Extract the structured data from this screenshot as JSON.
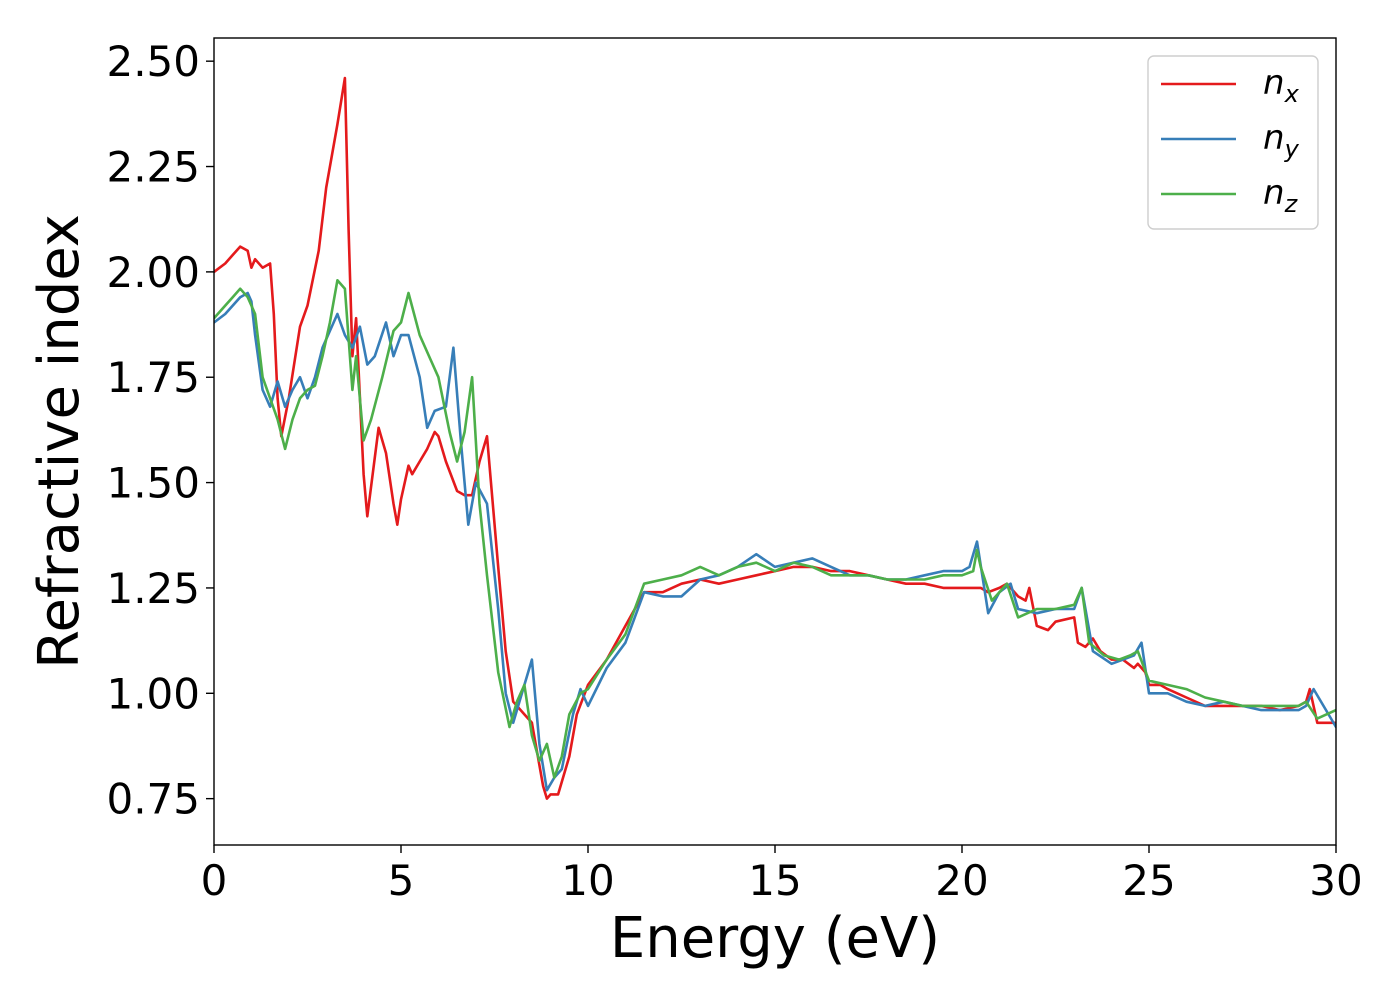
{
  "chart_data": {
    "type": "line",
    "xlabel": "Energy (eV)",
    "ylabel": "Refractive index",
    "xlim": [
      0,
      30
    ],
    "ylim": [
      0.64,
      2.555
    ],
    "xticks": [
      0,
      5,
      10,
      15,
      20,
      25,
      30
    ],
    "xtick_labels": [
      "0",
      "5",
      "10",
      "15",
      "20",
      "25",
      "30"
    ],
    "yticks": [
      0.75,
      1.0,
      1.25,
      1.5,
      1.75,
      2.0,
      2.25,
      2.5
    ],
    "ytick_labels": [
      "0.75",
      "1.00",
      "1.25",
      "1.50",
      "1.75",
      "2.00",
      "2.25",
      "2.50"
    ],
    "grid": false,
    "legend_position": "top-right",
    "series": [
      {
        "name": "n_x",
        "label_main": "n",
        "label_sub": "x",
        "color": "#e41a1c",
        "x": [
          0,
          0.3,
          0.5,
          0.7,
          0.9,
          1.0,
          1.1,
          1.3,
          1.5,
          1.6,
          1.7,
          1.8,
          2.0,
          2.3,
          2.5,
          2.8,
          3.0,
          3.3,
          3.5,
          3.6,
          3.7,
          3.8,
          4.0,
          4.1,
          4.4,
          4.6,
          4.8,
          4.9,
          5.0,
          5.2,
          5.3,
          5.5,
          5.7,
          5.9,
          6.0,
          6.2,
          6.5,
          6.7,
          6.9,
          7.1,
          7.3,
          7.6,
          7.8,
          8.0,
          8.3,
          8.5,
          8.8,
          8.9,
          9.0,
          9.2,
          9.5,
          9.7,
          10.0,
          10.5,
          11.0,
          11.5,
          12.0,
          12.5,
          13.0,
          13.5,
          14.0,
          14.5,
          15.0,
          15.5,
          16.0,
          16.5,
          17.0,
          17.5,
          18.0,
          18.5,
          19.0,
          19.5,
          20.0,
          20.5,
          20.7,
          21.0,
          21.2,
          21.5,
          21.7,
          21.8,
          22.0,
          22.3,
          22.5,
          23.0,
          23.1,
          23.3,
          23.5,
          23.7,
          24.0,
          24.3,
          24.6,
          24.7,
          24.9,
          25.0,
          25.3,
          25.5,
          26.0,
          26.5,
          27.0,
          27.5,
          28.0,
          28.5,
          29.0,
          29.2,
          29.3,
          29.5,
          30.0
        ],
        "y": [
          2.0,
          2.02,
          2.04,
          2.06,
          2.05,
          2.01,
          2.03,
          2.01,
          2.02,
          1.9,
          1.7,
          1.61,
          1.7,
          1.87,
          1.92,
          2.05,
          2.2,
          2.35,
          2.46,
          2.1,
          1.8,
          1.89,
          1.52,
          1.42,
          1.63,
          1.57,
          1.45,
          1.4,
          1.46,
          1.54,
          1.52,
          1.55,
          1.58,
          1.62,
          1.61,
          1.55,
          1.48,
          1.47,
          1.47,
          1.55,
          1.61,
          1.3,
          1.1,
          0.98,
          0.95,
          0.93,
          0.78,
          0.75,
          0.76,
          0.76,
          0.85,
          0.95,
          1.02,
          1.08,
          1.16,
          1.24,
          1.24,
          1.26,
          1.27,
          1.26,
          1.27,
          1.28,
          1.29,
          1.3,
          1.3,
          1.29,
          1.29,
          1.28,
          1.27,
          1.26,
          1.26,
          1.25,
          1.25,
          1.25,
          1.24,
          1.25,
          1.26,
          1.23,
          1.22,
          1.25,
          1.16,
          1.15,
          1.17,
          1.18,
          1.12,
          1.11,
          1.13,
          1.1,
          1.08,
          1.08,
          1.06,
          1.07,
          1.05,
          1.02,
          1.02,
          1.01,
          0.99,
          0.97,
          0.97,
          0.97,
          0.97,
          0.96,
          0.97,
          0.98,
          1.01,
          0.93,
          0.93
        ]
      },
      {
        "name": "n_y",
        "label_main": "n",
        "label_sub": "y",
        "color": "#377eb8",
        "x": [
          0,
          0.3,
          0.5,
          0.7,
          0.9,
          1.0,
          1.1,
          1.3,
          1.5,
          1.7,
          1.9,
          2.1,
          2.3,
          2.5,
          2.7,
          2.9,
          3.1,
          3.3,
          3.5,
          3.7,
          3.9,
          4.1,
          4.3,
          4.6,
          4.8,
          5.0,
          5.2,
          5.5,
          5.7,
          5.9,
          6.2,
          6.4,
          6.6,
          6.8,
          7.0,
          7.3,
          7.6,
          7.8,
          8.0,
          8.3,
          8.5,
          8.7,
          8.9,
          9.1,
          9.3,
          9.6,
          9.8,
          10.0,
          10.5,
          11.0,
          11.5,
          12.0,
          12.5,
          13.0,
          13.5,
          14.0,
          14.5,
          15.0,
          15.5,
          16.0,
          16.5,
          17.0,
          17.5,
          18.0,
          18.5,
          19.0,
          19.5,
          20.0,
          20.2,
          20.4,
          20.7,
          21.0,
          21.3,
          21.5,
          22.0,
          22.5,
          23.0,
          23.2,
          23.5,
          24.0,
          24.3,
          24.6,
          24.8,
          25.0,
          25.5,
          26.0,
          26.5,
          27.0,
          27.5,
          28.0,
          28.5,
          29.0,
          29.2,
          29.4,
          30.0
        ],
        "y": [
          1.88,
          1.9,
          1.92,
          1.94,
          1.95,
          1.93,
          1.85,
          1.72,
          1.68,
          1.74,
          1.68,
          1.72,
          1.75,
          1.7,
          1.75,
          1.82,
          1.86,
          1.9,
          1.85,
          1.82,
          1.87,
          1.78,
          1.8,
          1.88,
          1.8,
          1.85,
          1.85,
          1.75,
          1.63,
          1.67,
          1.68,
          1.82,
          1.6,
          1.4,
          1.5,
          1.45,
          1.2,
          1.0,
          0.93,
          1.02,
          1.08,
          0.88,
          0.77,
          0.8,
          0.82,
          0.95,
          1.01,
          0.97,
          1.06,
          1.12,
          1.24,
          1.23,
          1.23,
          1.27,
          1.28,
          1.3,
          1.33,
          1.3,
          1.31,
          1.32,
          1.3,
          1.28,
          1.28,
          1.27,
          1.27,
          1.28,
          1.29,
          1.29,
          1.3,
          1.36,
          1.19,
          1.24,
          1.26,
          1.2,
          1.19,
          1.2,
          1.2,
          1.25,
          1.1,
          1.07,
          1.08,
          1.09,
          1.12,
          1.0,
          1.0,
          0.98,
          0.97,
          0.98,
          0.97,
          0.96,
          0.96,
          0.96,
          0.97,
          1.01,
          0.92
        ]
      },
      {
        "name": "n_z",
        "label_main": "n",
        "label_sub": "z",
        "color": "#4daf4a",
        "x": [
          0,
          0.3,
          0.5,
          0.7,
          0.9,
          1.1,
          1.3,
          1.5,
          1.7,
          1.9,
          2.1,
          2.3,
          2.5,
          2.7,
          2.9,
          3.1,
          3.3,
          3.5,
          3.7,
          3.8,
          4.0,
          4.2,
          4.5,
          4.8,
          5.0,
          5.2,
          5.5,
          5.8,
          6.0,
          6.3,
          6.5,
          6.7,
          6.9,
          7.1,
          7.3,
          7.6,
          7.9,
          8.1,
          8.3,
          8.5,
          8.7,
          8.9,
          9.1,
          9.3,
          9.5,
          9.8,
          10.0,
          10.5,
          11.0,
          11.5,
          12.0,
          12.5,
          13.0,
          13.5,
          14.0,
          14.5,
          15.0,
          15.5,
          16.0,
          16.5,
          17.0,
          17.5,
          18.0,
          18.5,
          19.0,
          19.5,
          20.0,
          20.3,
          20.4,
          20.5,
          20.8,
          21.0,
          21.2,
          21.5,
          22.0,
          22.5,
          23.0,
          23.2,
          23.4,
          23.8,
          24.2,
          24.5,
          24.7,
          25.0,
          25.5,
          26.0,
          26.5,
          27.0,
          27.5,
          28.0,
          28.5,
          29.0,
          29.2,
          29.5,
          30.0
        ],
        "y": [
          1.89,
          1.92,
          1.94,
          1.96,
          1.94,
          1.9,
          1.75,
          1.7,
          1.65,
          1.58,
          1.65,
          1.7,
          1.72,
          1.73,
          1.8,
          1.88,
          1.98,
          1.96,
          1.72,
          1.8,
          1.6,
          1.65,
          1.75,
          1.86,
          1.88,
          1.95,
          1.85,
          1.79,
          1.75,
          1.62,
          1.55,
          1.62,
          1.75,
          1.45,
          1.28,
          1.05,
          0.92,
          0.98,
          1.02,
          0.9,
          0.84,
          0.88,
          0.8,
          0.85,
          0.95,
          1.0,
          1.01,
          1.08,
          1.14,
          1.26,
          1.27,
          1.28,
          1.3,
          1.28,
          1.3,
          1.31,
          1.29,
          1.31,
          1.3,
          1.28,
          1.28,
          1.28,
          1.27,
          1.27,
          1.27,
          1.28,
          1.28,
          1.29,
          1.34,
          1.3,
          1.22,
          1.24,
          1.26,
          1.18,
          1.2,
          1.2,
          1.21,
          1.25,
          1.12,
          1.09,
          1.08,
          1.09,
          1.1,
          1.03,
          1.02,
          1.01,
          0.99,
          0.98,
          0.97,
          0.97,
          0.97,
          0.97,
          0.98,
          0.94,
          0.96
        ]
      }
    ]
  }
}
